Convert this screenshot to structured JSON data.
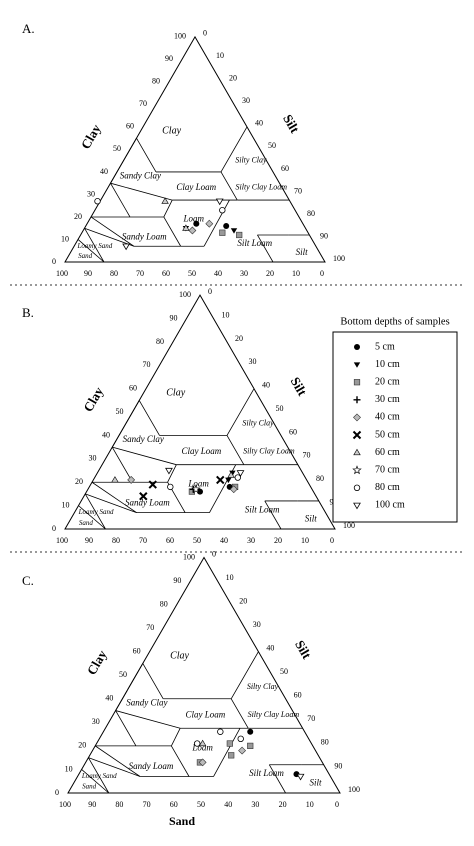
{
  "panels": [
    {
      "label": "A.",
      "axis_labels": {
        "clay": "Clay",
        "silt": "Silt",
        "sand": ""
      },
      "chart_data": {
        "type": "scatter",
        "chart_kind": "soil texture ternary diagram",
        "axes": {
          "clay": {
            "ticks": [
              "0",
              "10",
              "20",
              "30",
              "40",
              "50",
              "60",
              "70",
              "80",
              "90",
              "100"
            ]
          },
          "silt": {
            "ticks": [
              "0",
              "10",
              "20",
              "30",
              "40",
              "50",
              "60",
              "70",
              "80",
              "90",
              "100"
            ]
          },
          "sand": {
            "ticks": [
              "100",
              "90",
              "80",
              "70",
              "60",
              "50",
              "40",
              "30",
              "20",
              "10",
              "0"
            ]
          }
        },
        "region_labels": [
          "Clay",
          "Silty Clay",
          "Sandy Clay",
          "Clay Loam",
          "Silty Clay Loam",
          "Sandy Loam",
          "Loam",
          "Silt Loam",
          "Silt",
          "Loamy Sand",
          "Sand"
        ],
        "series": [
          {
            "name": "5 cm",
            "marker": "circle",
            "points": [
              {
                "sand": 41,
                "clay": 17
              },
              {
                "sand": 30,
                "clay": 16
              }
            ]
          },
          {
            "name": "10 cm",
            "marker": "triangle-down",
            "points": [
              {
                "sand": 28,
                "clay": 14
              },
              {
                "sand": 46,
                "clay": 15
              }
            ]
          },
          {
            "name": "20 cm",
            "marker": "square",
            "points": [
              {
                "sand": 33,
                "clay": 13
              },
              {
                "sand": 27,
                "clay": 12
              }
            ]
          },
          {
            "name": "40 cm",
            "marker": "diamond",
            "points": [
              {
                "sand": 44,
                "clay": 14
              },
              {
                "sand": 36,
                "clay": 17
              }
            ]
          },
          {
            "name": "60 cm",
            "marker": "triangle-up",
            "points": [
              {
                "sand": 48,
                "clay": 27
              },
              {
                "sand": 46,
                "clay": 15
              }
            ]
          },
          {
            "name": "80 cm",
            "marker": "circle-open",
            "points": [
              {
                "sand": 74,
                "clay": 27
              },
              {
                "sand": 28,
                "clay": 23
              }
            ]
          },
          {
            "name": "100 cm",
            "marker": "triangle-down-open",
            "points": [
              {
                "sand": 73,
                "clay": 7
              },
              {
                "sand": 27,
                "clay": 27
              }
            ]
          }
        ]
      }
    },
    {
      "label": "B.",
      "axis_labels": {
        "clay": "Clay",
        "silt": "Silt",
        "sand": ""
      },
      "chart_data": {
        "type": "scatter",
        "chart_kind": "soil texture ternary diagram",
        "axes": {
          "clay": {
            "ticks": [
              "0",
              "10",
              "20",
              "30",
              "40",
              "50",
              "60",
              "70",
              "80",
              "90",
              "100"
            ]
          },
          "silt": {
            "ticks": [
              "0",
              "10",
              "20",
              "30",
              "40",
              "50",
              "60",
              "70",
              "80",
              "90",
              "100"
            ]
          },
          "sand": {
            "ticks": [
              "100",
              "90",
              "80",
              "70",
              "60",
              "50",
              "40",
              "30",
              "20",
              "10",
              "0"
            ]
          }
        },
        "region_labels": [
          "Clay",
          "Silty Clay",
          "Sandy Clay",
          "Clay Loam",
          "Silty Clay Loam",
          "Sandy Loam",
          "Loam",
          "Silt Loam",
          "Silt",
          "Loamy Sand",
          "Sand"
        ],
        "series": [
          {
            "name": "5 cm",
            "marker": "circle",
            "points": [
              {
                "sand": 42,
                "clay": 16
              },
              {
                "sand": 30,
                "clay": 18
              }
            ]
          },
          {
            "name": "10 cm",
            "marker": "triangle-down",
            "points": [
              {
                "sand": 26,
                "clay": 24
              },
              {
                "sand": 29,
                "clay": 21
              }
            ]
          },
          {
            "name": "20 cm",
            "marker": "square",
            "points": [
              {
                "sand": 45,
                "clay": 16
              },
              {
                "sand": 28,
                "clay": 18
              }
            ]
          },
          {
            "name": "30 cm",
            "marker": "plus",
            "points": [
              {
                "sand": 44,
                "clay": 17
              }
            ]
          },
          {
            "name": "40 cm",
            "marker": "diamond",
            "points": [
              {
                "sand": 65,
                "clay": 21
              },
              {
                "sand": 29,
                "clay": 17
              }
            ]
          },
          {
            "name": "50 cm",
            "marker": "x",
            "points": [
              {
                "sand": 64,
                "clay": 14
              },
              {
                "sand": 58,
                "clay": 19
              },
              {
                "sand": 32,
                "clay": 21
              }
            ]
          },
          {
            "name": "60 cm",
            "marker": "triangle-up",
            "points": [
              {
                "sand": 71,
                "clay": 21
              },
              {
                "sand": 27,
                "clay": 23
              }
            ]
          },
          {
            "name": "70 cm",
            "marker": "star",
            "points": [
              {
                "sand": 43,
                "clay": 17
              }
            ]
          },
          {
            "name": "80 cm",
            "marker": "circle-open",
            "points": [
              {
                "sand": 52,
                "clay": 18
              },
              {
                "sand": 25,
                "clay": 22
              }
            ]
          },
          {
            "name": "100 cm",
            "marker": "triangle-down-open",
            "points": [
              {
                "sand": 49,
                "clay": 25
              },
              {
                "sand": 23,
                "clay": 24
              }
            ]
          }
        ]
      }
    },
    {
      "label": "C.",
      "axis_labels": {
        "clay": "Clay",
        "silt": "Silt",
        "sand": "Sand"
      },
      "chart_data": {
        "type": "scatter",
        "chart_kind": "soil texture ternary diagram",
        "axes": {
          "clay": {
            "ticks": [
              "0",
              "10",
              "20",
              "30",
              "40",
              "50",
              "60",
              "70",
              "80",
              "90",
              "100"
            ]
          },
          "silt": {
            "ticks": [
              "0",
              "10",
              "20",
              "30",
              "40",
              "50",
              "60",
              "70",
              "80",
              "90",
              "100"
            ]
          },
          "sand": {
            "ticks": [
              "100",
              "90",
              "80",
              "70",
              "60",
              "50",
              "40",
              "30",
              "20",
              "10",
              "0"
            ]
          }
        },
        "region_labels": [
          "Clay",
          "Silty Clay",
          "Sandy Clay",
          "Clay Loam",
          "Silty Clay Loam",
          "Sandy Loam",
          "Loam",
          "Silt Loam",
          "Silt",
          "Loamy Sand",
          "Sand"
        ],
        "series": [
          {
            "name": "5 cm",
            "marker": "circle",
            "points": [
              {
                "sand": 12,
                "clay": 8
              },
              {
                "sand": 20,
                "clay": 26
              }
            ]
          },
          {
            "name": "20 cm",
            "marker": "square",
            "points": [
              {
                "sand": 30,
                "clay": 21
              },
              {
                "sand": 23,
                "clay": 20
              },
              {
                "sand": 45,
                "clay": 13
              },
              {
                "sand": 32,
                "clay": 16
              }
            ]
          },
          {
            "name": "40 cm",
            "marker": "diamond",
            "points": [
              {
                "sand": 44,
                "clay": 13
              },
              {
                "sand": 27,
                "clay": 18
              }
            ]
          },
          {
            "name": "60 cm",
            "marker": "triangle-up",
            "points": [
              {
                "sand": 40,
                "clay": 21
              }
            ]
          },
          {
            "name": "80 cm",
            "marker": "circle-open",
            "points": [
              {
                "sand": 42,
                "clay": 21
              },
              {
                "sand": 25,
                "clay": 23
              },
              {
                "sand": 31,
                "clay": 26
              }
            ]
          },
          {
            "name": "100 cm",
            "marker": "triangle-down-open",
            "points": [
              {
                "sand": 11,
                "clay": 7
              }
            ]
          }
        ]
      }
    }
  ],
  "legend": {
    "title": "Bottom depths of samples",
    "items": [
      {
        "label": "5 cm",
        "marker": "circle"
      },
      {
        "label": "10 cm",
        "marker": "triangle-down"
      },
      {
        "label": "20 cm",
        "marker": "square"
      },
      {
        "label": "30 cm",
        "marker": "plus"
      },
      {
        "label": "40 cm",
        "marker": "diamond"
      },
      {
        "label": "50 cm",
        "marker": "x"
      },
      {
        "label": "60 cm",
        "marker": "triangle-up"
      },
      {
        "label": "70 cm",
        "marker": "star"
      },
      {
        "label": "80 cm",
        "marker": "circle-open"
      },
      {
        "label": "100 cm",
        "marker": "triangle-down-open"
      }
    ]
  }
}
